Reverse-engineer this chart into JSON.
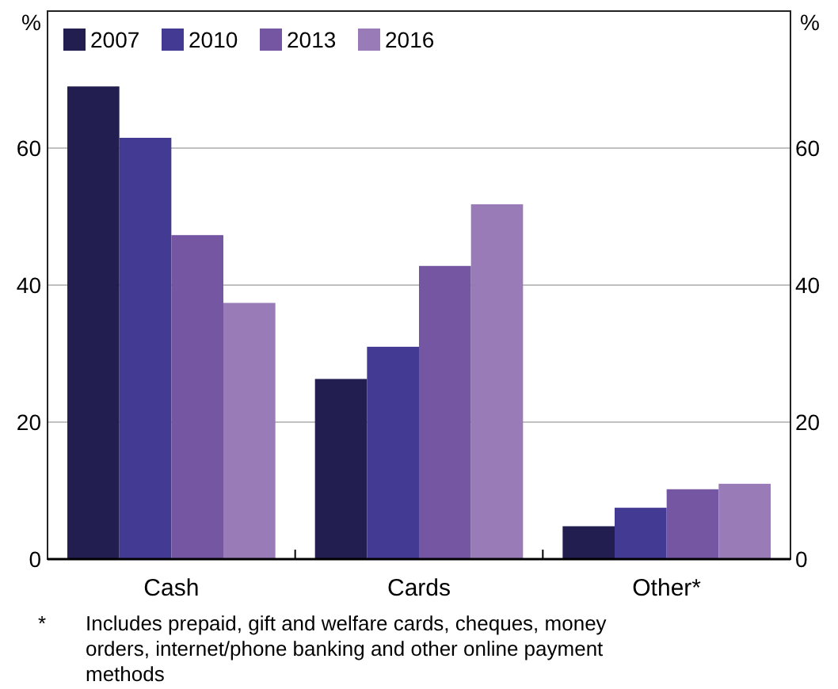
{
  "chart_data": {
    "type": "bar",
    "ylabel": "%",
    "y2label": "%",
    "categories": [
      "Cash",
      "Cards",
      "Other*"
    ],
    "series": [
      {
        "name": "2007",
        "color": "#221f50",
        "values": [
          69.0,
          26.3,
          4.8
        ]
      },
      {
        "name": "2010",
        "color": "#433a93",
        "values": [
          61.5,
          31.0,
          7.5
        ]
      },
      {
        "name": "2013",
        "color": "#7556a2",
        "values": [
          47.3,
          42.8,
          10.2
        ]
      },
      {
        "name": "2016",
        "color": "#987bb7",
        "values": [
          37.4,
          51.8,
          11.0
        ]
      }
    ],
    "ylim": [
      0,
      80
    ],
    "yticks": [
      0,
      20,
      40,
      60
    ],
    "y2lim": [
      0,
      80
    ],
    "y2ticks": [
      0,
      20,
      40,
      60
    ],
    "grid": "y",
    "legend": "top left",
    "annotations": [
      "* Includes prepaid, gift and welfare cards, cheques, money orders, internet/phone banking and other online payment methods"
    ]
  }
}
